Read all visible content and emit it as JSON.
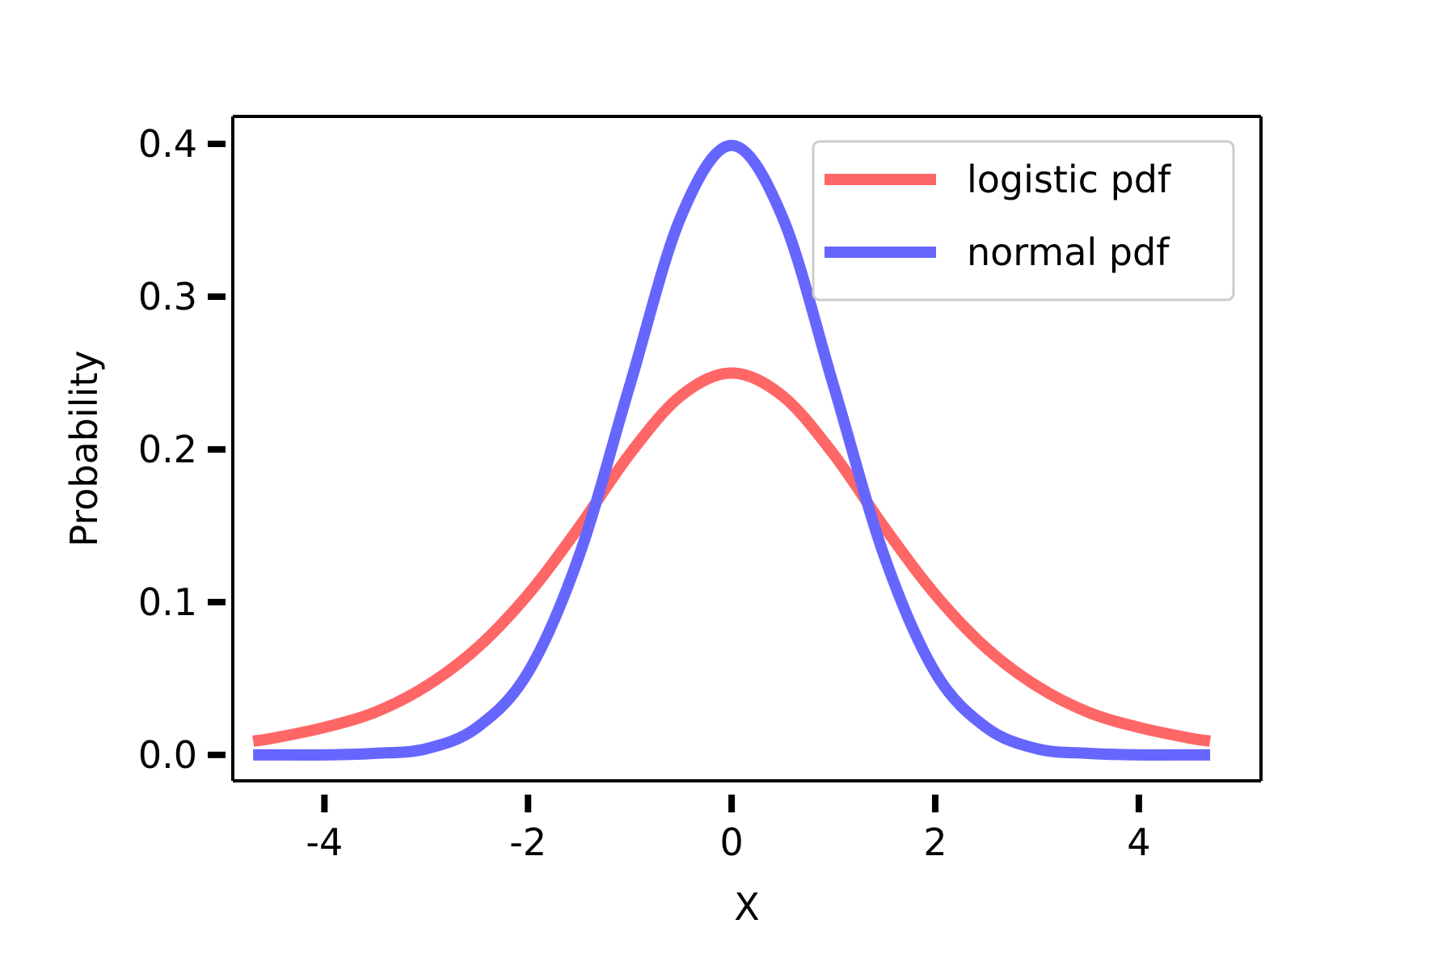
{
  "chart_data": {
    "type": "line",
    "title": "",
    "xlabel": "X",
    "ylabel": "Probability",
    "xlim": [
      -4.9,
      5.2
    ],
    "ylim": [
      -0.017,
      0.418
    ],
    "xticks": [
      -4,
      -2,
      0,
      2,
      4
    ],
    "xtick_labels": [
      "-4",
      "-2",
      "0",
      "2",
      "4"
    ],
    "yticks": [
      0.0,
      0.1,
      0.2,
      0.3,
      0.4
    ],
    "ytick_labels": [
      "0.0",
      "0.1",
      "0.2",
      "0.3",
      "0.4"
    ],
    "grid": false,
    "legend_position": "top-right",
    "x": [
      -4.7,
      -4.5,
      -4.0,
      -3.5,
      -3.0,
      -2.5,
      -2.0,
      -1.5,
      -1.0,
      -0.5,
      0.0,
      0.5,
      1.0,
      1.5,
      2.0,
      2.5,
      3.0,
      3.5,
      4.0,
      4.5,
      4.7
    ],
    "series": [
      {
        "name": "logistic pdf",
        "color": "#ff6666",
        "values": [
          0.009,
          0.011,
          0.018,
          0.028,
          0.045,
          0.07,
          0.105,
          0.149,
          0.197,
          0.235,
          0.25,
          0.235,
          0.197,
          0.149,
          0.105,
          0.07,
          0.045,
          0.028,
          0.018,
          0.011,
          0.009
        ]
      },
      {
        "name": "normal pdf",
        "color": "#6666ff",
        "values": [
          0.0,
          0.0,
          0.0,
          0.001,
          0.004,
          0.018,
          0.054,
          0.13,
          0.242,
          0.352,
          0.399,
          0.352,
          0.242,
          0.13,
          0.054,
          0.018,
          0.004,
          0.001,
          0.0,
          0.0,
          0.0
        ]
      }
    ]
  }
}
